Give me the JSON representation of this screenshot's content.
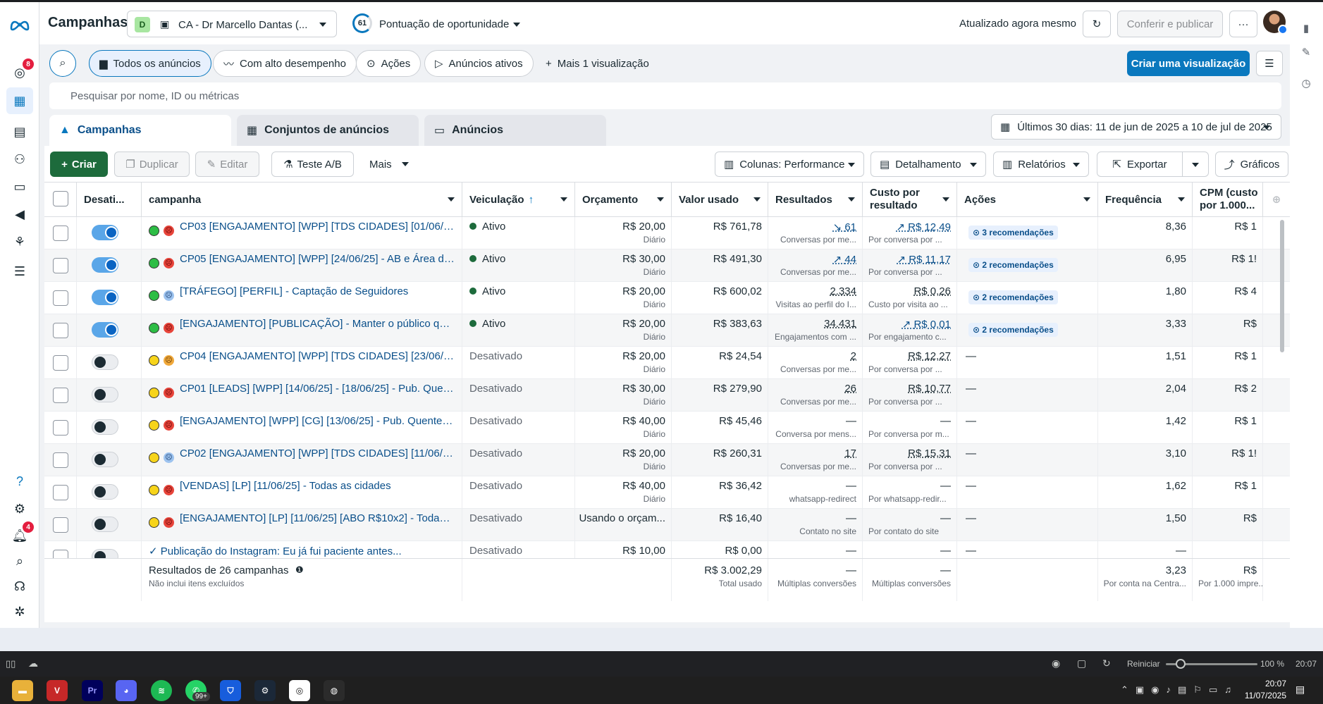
{
  "header": {
    "title": "Campanhas",
    "account_initial": "D",
    "account_name": "CA - Dr Marcello Dantas (...",
    "score_value": "61",
    "score_label": "Pontuação de oportunidade",
    "updated_text": "Atualizado agora mesmo",
    "review_publish": "Conferir e publicar",
    "more": "···"
  },
  "rail": {
    "notifications_badge": "8",
    "alerts_badge": "4",
    "help": "?"
  },
  "filters": {
    "all_ads": "Todos os anúncios",
    "high_perf": "Com alto desempenho",
    "actions": "Ações",
    "active_ads": "Anúncios ativos",
    "more_views": "Mais 1 visualização",
    "create_view": "Criar uma visualização"
  },
  "search": {
    "placeholder": "Pesquisar por nome, ID ou métricas"
  },
  "tabs": {
    "campaigns": "Campanhas",
    "adsets": "Conjuntos de anúncios",
    "ads": "Anúncios"
  },
  "date_range": "Últimos 30 dias: 11 de jun de 2025 a 10 de jul de 2025",
  "toolbar": {
    "create": "Criar",
    "duplicate": "Duplicar",
    "edit": "Editar",
    "ab_test": "Teste A/B",
    "more": "Mais",
    "columns": "Colunas: Performance",
    "breakdown": "Detalhamento",
    "reports": "Relatórios",
    "export": "Exportar",
    "charts": "Gráficos"
  },
  "columns": {
    "toggle": "Desati...",
    "campaign": "campanha",
    "delivery": "Veiculação",
    "budget": "Orçamento",
    "spent": "Valor usado",
    "results": "Resultados",
    "cost_per_result_1": "Custo por",
    "cost_per_result_2": "resultado",
    "actions": "Ações",
    "frequency": "Frequência",
    "cpm_1": "CPM (custo",
    "cpm_2": "por 1.000..."
  },
  "rows": [
    {
      "on": true,
      "dot": "green",
      "face": "red",
      "name": "CP03 [ENGAJAMENTO] [WPP] [TDS CIDADES] [01/06/25...",
      "status": "Ativo",
      "budget": "R$ 20,00",
      "budget_sub": "Diário",
      "spent": "R$ 761,78",
      "results": "61",
      "results_trend": "down",
      "results_sub": "Conversas por me...",
      "cost": "R$ 12,49",
      "cost_trend": "up",
      "cost_sub": "Por conversa por ...",
      "actions": "3 recomendações",
      "freq": "8,36",
      "cpm": "R$ 1"
    },
    {
      "on": true,
      "dot": "green",
      "face": "red",
      "name": "CP05 [ENGAJAMENTO] [WPP] [24/06/25] - AB e Área de ...",
      "status": "Ativo",
      "budget": "R$ 30,00",
      "budget_sub": "Diário",
      "spent": "R$ 491,30",
      "results": "44",
      "results_trend": "up",
      "results_sub": "Conversas por me...",
      "cost": "R$ 11,17",
      "cost_trend": "up",
      "cost_sub": "Por conversa por ...",
      "actions": "2 recomendações",
      "freq": "6,95",
      "cpm": "R$ 1!"
    },
    {
      "on": true,
      "dot": "green",
      "face": "blue",
      "name": "[TRÁFEGO] [PERFIL] - Captação de Seguidores",
      "status": "Ativo",
      "budget": "R$ 20,00",
      "budget_sub": "Diário",
      "spent": "R$ 600,02",
      "results": "2.334",
      "results_trend": "",
      "results_sub": "Visitas ao perfil do I...",
      "cost": "R$ 0,26",
      "cost_trend": "",
      "cost_sub": "Custo por visita ao ...",
      "actions": "2 recomendações",
      "freq": "1,80",
      "cpm": "R$ 4"
    },
    {
      "on": true,
      "dot": "green",
      "face": "red",
      "name": "[ENGAJAMENTO] [PUBLICAÇÃO] - Manter o público quen...",
      "status": "Ativo",
      "budget": "R$ 20,00",
      "budget_sub": "Diário",
      "spent": "R$ 383,63",
      "results": "34.431",
      "results_trend": "",
      "results_sub": "Engajamentos com ...",
      "cost": "R$ 0,01",
      "cost_trend": "up",
      "cost_sub": "Por engajamento c...",
      "actions": "2 recomendações",
      "freq": "3,33",
      "cpm": "R$"
    },
    {
      "on": false,
      "dot": "yellow",
      "face": "orange",
      "name": "CP04 [ENGAJAMENTO] [WPP] [TDS CIDADES] [23/06/25...",
      "status": "Desativado",
      "budget": "R$ 20,00",
      "budget_sub": "Diário",
      "spent": "R$ 24,54",
      "results": "2",
      "results_trend": "",
      "results_sub": "Conversas por me...",
      "cost": "R$ 12,27",
      "cost_trend": "",
      "cost_sub": "Por conversa por ...",
      "actions": "—",
      "freq": "1,51",
      "cpm": "R$ 1"
    },
    {
      "on": false,
      "dot": "yellow",
      "face": "red",
      "name": "CP01 [LEADS] [WPP] [14/06/25] - [18/06/25] - Pub. Quent...",
      "status": "Desativado",
      "budget": "R$ 30,00",
      "budget_sub": "Diário",
      "spent": "R$ 279,90",
      "results": "26",
      "results_trend": "",
      "results_sub": "Conversas por me...",
      "cost": "R$ 10,77",
      "cost_trend": "",
      "cost_sub": "Por conversa por ...",
      "actions": "—",
      "freq": "2,04",
      "cpm": "R$ 2"
    },
    {
      "on": false,
      "dot": "yellow",
      "face": "red",
      "name": "[ENGAJAMENTO] [WPP] [CG] [13/06/25] - Pub. Quente A...",
      "status": "Desativado",
      "budget": "R$ 40,00",
      "budget_sub": "Diário",
      "spent": "R$ 45,46",
      "results": "—",
      "results_trend": "",
      "results_sub": "Conversa por mens...",
      "cost": "—",
      "cost_trend": "",
      "cost_sub": "Por conversa por m...",
      "actions": "—",
      "freq": "1,42",
      "cpm": "R$ 1"
    },
    {
      "on": false,
      "dot": "yellow",
      "face": "blue",
      "name": "CP02 [ENGAJAMENTO] [WPP] [TDS CIDADES] [11/06/25]...",
      "status": "Desativado",
      "budget": "R$ 20,00",
      "budget_sub": "Diário",
      "spent": "R$ 260,31",
      "results": "17",
      "results_trend": "",
      "results_sub": "Conversas por me...",
      "cost": "R$ 15,31",
      "cost_trend": "",
      "cost_sub": "Por conversa por ...",
      "actions": "—",
      "freq": "3,10",
      "cpm": "R$ 1!"
    },
    {
      "on": false,
      "dot": "yellow",
      "face": "red",
      "name": "[VENDAS] [LP] [11/06/25] - Todas as cidades",
      "status": "Desativado",
      "budget": "R$ 40,00",
      "budget_sub": "Diário",
      "spent": "R$ 36,42",
      "results": "—",
      "results_trend": "",
      "results_sub": "whatsapp-redirect",
      "cost": "—",
      "cost_trend": "",
      "cost_sub": "Por whatsapp-redir...",
      "actions": "—",
      "freq": "1,62",
      "cpm": "R$ 1"
    },
    {
      "on": false,
      "dot": "yellow",
      "face": "red",
      "name": "[ENGAJAMENTO] [LP] [11/06/25] [ABO R$10x2] - Todas a...",
      "status": "Desativado",
      "budget": "Usando o orçam...",
      "budget_sub": "",
      "spent": "R$ 16,40",
      "results": "—",
      "results_trend": "",
      "results_sub": "Contato no site",
      "cost": "—",
      "cost_trend": "",
      "cost_sub": "Por contato do site",
      "actions": "—",
      "freq": "1,50",
      "cpm": "R$"
    },
    {
      "on": false,
      "dot": "",
      "face": "",
      "name": "✓ Publicação do Instagram: Eu já fui paciente antes...",
      "status": "Desativado",
      "budget": "R$ 10,00",
      "budget_sub": "",
      "spent": "R$ 0,00",
      "results": "—",
      "results_trend": "",
      "results_sub": "",
      "cost": "—",
      "cost_trend": "",
      "cost_sub": "",
      "actions": "—",
      "freq": "—",
      "cpm": ""
    }
  ],
  "footer": {
    "label": "Resultados de 26 campanhas",
    "sub": "Não inclui itens excluídos",
    "spent": "R$ 3.002,29",
    "spent_sub": "Total usado",
    "results": "—",
    "results_sub": "Múltiplas conversões",
    "cost": "—",
    "cost_sub": "Múltiplas conversões",
    "freq": "3,23",
    "freq_sub": "Por conta na Centra...",
    "cpm": "R$",
    "cpm_sub": "Por 1.000 impre..."
  },
  "statusbar": {
    "restart": "Reiniciar",
    "zoom": "100 %",
    "time": "20:07"
  },
  "taskbar": {
    "time": "20:07",
    "date": "11/07/2025",
    "badge": "99+"
  }
}
